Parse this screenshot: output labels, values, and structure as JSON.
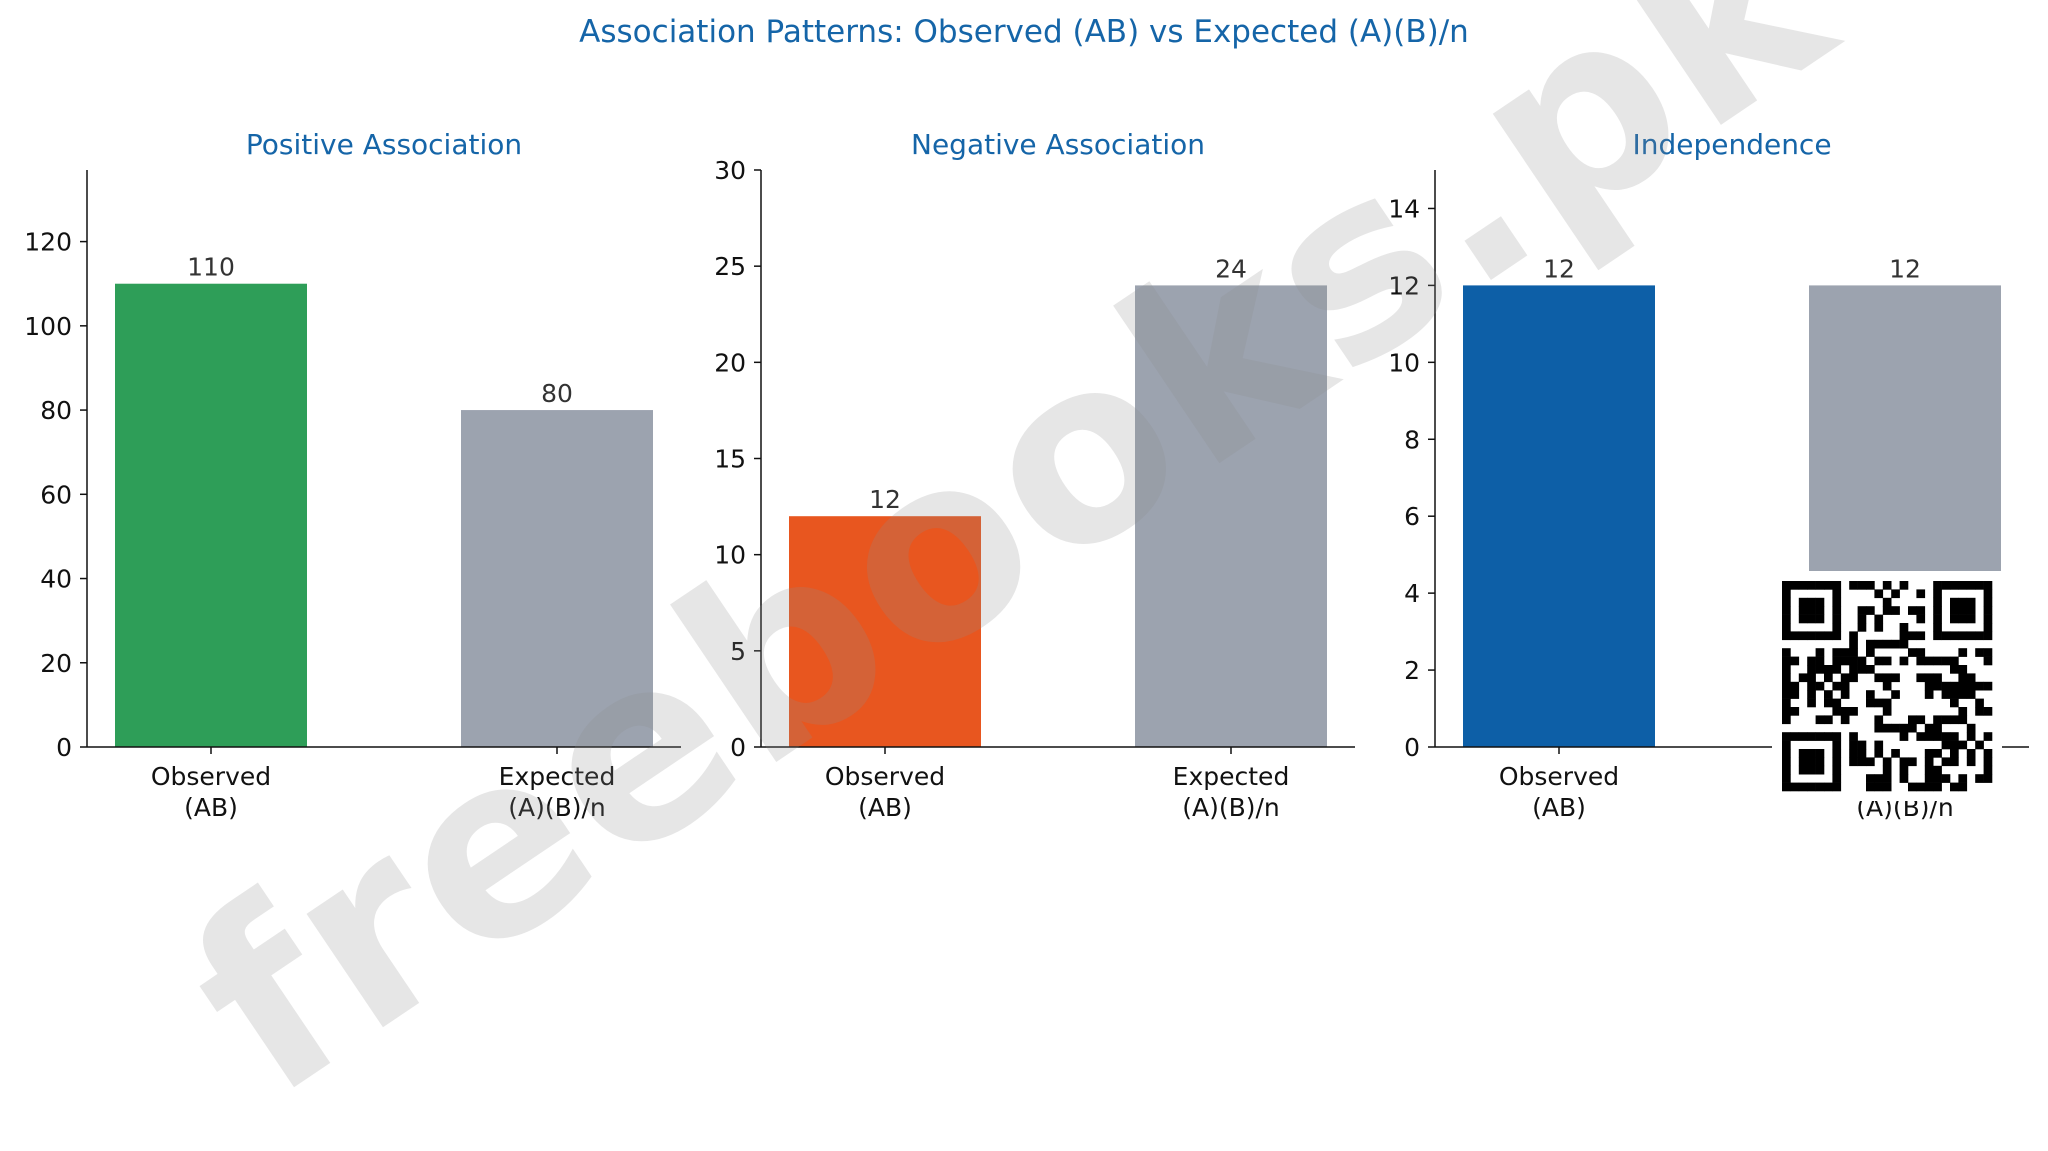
{
  "chart_data": {
    "title": "Association Patterns: Observed (AB) vs Expected (A)(B)/n",
    "type": "bar",
    "colors": {
      "title": "#1565a8",
      "axis": "#111111",
      "value_label": "#333333"
    },
    "panels": [
      {
        "title": "Positive Association",
        "categories": [
          "Observed\n(AB)",
          "Expected\n(A)(B)/n"
        ],
        "values": [
          110,
          80
        ],
        "value_labels": [
          "110",
          "80"
        ],
        "colors": [
          "#2e9e58",
          "#9ca3af"
        ],
        "ylim": [
          0,
          137
        ],
        "yticks": [
          0,
          20,
          40,
          60,
          80,
          100,
          120
        ]
      },
      {
        "title": "Negative Association",
        "categories": [
          "Observed\n(AB)",
          "Expected\n(A)(B)/n"
        ],
        "values": [
          12,
          24
        ],
        "value_labels": [
          "12",
          "24"
        ],
        "colors": [
          "#e8561f",
          "#9ca3af"
        ],
        "ylim": [
          0,
          30
        ],
        "yticks": [
          0,
          5,
          10,
          15,
          20,
          25,
          30
        ]
      },
      {
        "title": "Independence",
        "categories": [
          "Observed\n(AB)",
          "Expected\n(A)(B)/n"
        ],
        "values": [
          12,
          12
        ],
        "value_labels": [
          "12",
          "12"
        ],
        "colors": [
          "#0d5fa7",
          "#9ca3af"
        ],
        "ylim": [
          0,
          15
        ],
        "yticks": [
          0,
          2,
          4,
          6,
          8,
          10,
          12,
          14
        ]
      }
    ]
  },
  "watermark": {
    "text": "freebooks.pk"
  },
  "qr_code": {
    "icon": "qr-code-icon"
  }
}
